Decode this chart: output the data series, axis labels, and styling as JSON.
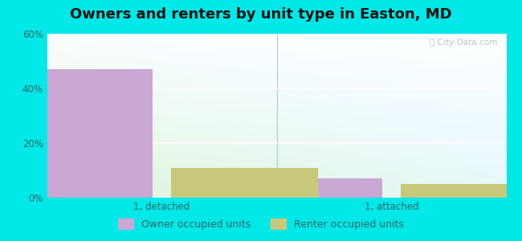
{
  "title": "Owners and renters by unit type in Easton, MD",
  "categories": [
    "1, detached",
    "1, attached"
  ],
  "owner_values": [
    47,
    7
  ],
  "renter_values": [
    11,
    5
  ],
  "owner_color": "#c9a8d4",
  "renter_color": "#c8c87a",
  "ylim": [
    0,
    60
  ],
  "yticks": [
    0,
    20,
    40,
    60
  ],
  "ytick_labels": [
    "0%",
    "20%",
    "40%",
    "60%"
  ],
  "bar_width": 0.32,
  "legend_owner": "Owner occupied units",
  "legend_renter": "Renter occupied units",
  "outer_bg": "#00e8e8",
  "title_fontsize": 13,
  "tick_fontsize": 8.5,
  "legend_fontsize": 9,
  "watermark": "ⓘ City-Data.com",
  "x_positions": [
    0.25,
    0.75
  ],
  "xlim": [
    0.0,
    1.0
  ]
}
